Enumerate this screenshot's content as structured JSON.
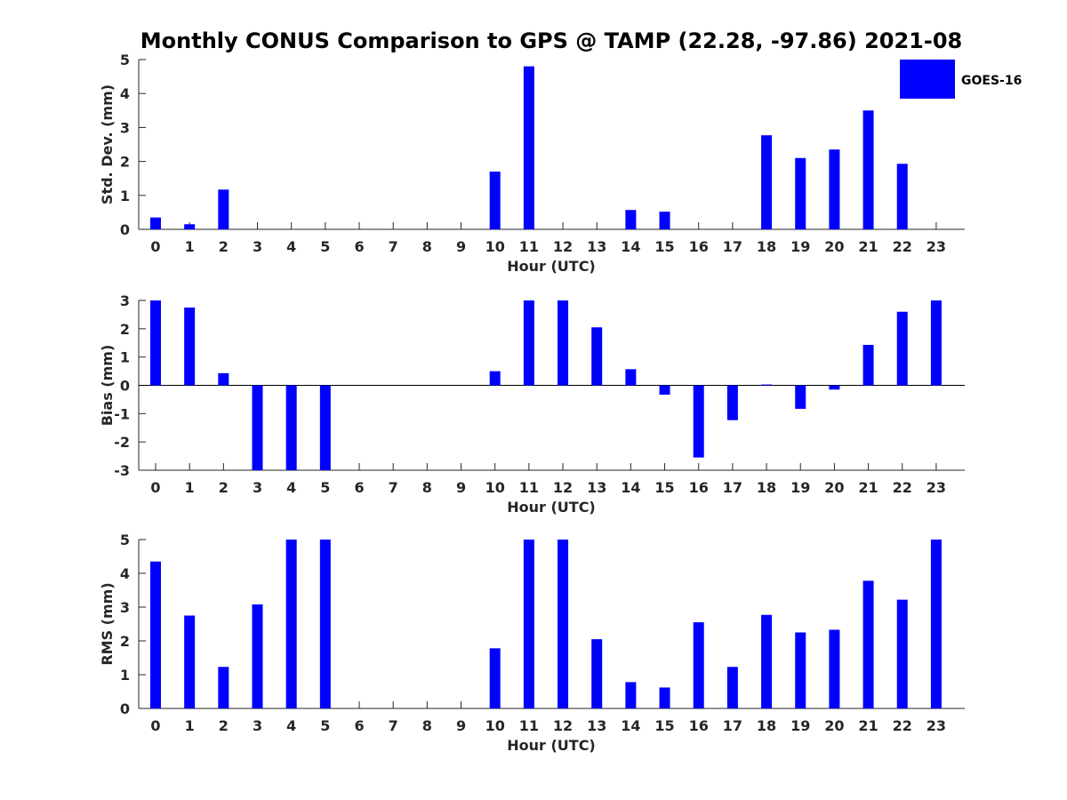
{
  "title": "Monthly CONUS Comparison to GPS @ TAMP (22.28, -97.86) 2021-08",
  "legend": {
    "label": "GOES-16",
    "color": "#0000ff"
  },
  "chart_data": [
    {
      "type": "bar",
      "xlabel": "Hour (UTC)",
      "ylabel": "Std. Dev. (mm)",
      "ylim": [
        0,
        5
      ],
      "yticks": [
        0,
        1,
        2,
        3,
        4,
        5
      ],
      "categories": [
        "0",
        "1",
        "2",
        "3",
        "4",
        "5",
        "6",
        "7",
        "8",
        "9",
        "10",
        "11",
        "12",
        "13",
        "14",
        "15",
        "16",
        "17",
        "18",
        "19",
        "20",
        "21",
        "22",
        "23"
      ],
      "series": [
        {
          "name": "GOES-16",
          "values": [
            0.35,
            0.15,
            1.17,
            null,
            null,
            null,
            null,
            null,
            null,
            null,
            1.7,
            4.8,
            null,
            null,
            0.57,
            0.52,
            null,
            null,
            2.77,
            2.1,
            2.35,
            3.5,
            1.93,
            null
          ]
        }
      ],
      "grid": false,
      "legend_position": "top-right"
    },
    {
      "type": "bar",
      "xlabel": "Hour (UTC)",
      "ylabel": "Bias (mm)",
      "ylim": [
        -3,
        3
      ],
      "yticks": [
        -3,
        -2,
        -1,
        0,
        1,
        2,
        3
      ],
      "categories": [
        "0",
        "1",
        "2",
        "3",
        "4",
        "5",
        "6",
        "7",
        "8",
        "9",
        "10",
        "11",
        "12",
        "13",
        "14",
        "15",
        "16",
        "17",
        "18",
        "19",
        "20",
        "21",
        "22",
        "23"
      ],
      "series": [
        {
          "name": "GOES-16",
          "values": [
            3.0,
            2.75,
            0.43,
            -3.0,
            -3.0,
            -3.0,
            null,
            null,
            null,
            null,
            0.5,
            3.0,
            3.0,
            2.05,
            0.57,
            -0.33,
            -2.55,
            -1.23,
            0.03,
            -0.83,
            -0.15,
            1.43,
            2.6,
            3.0
          ]
        }
      ],
      "grid": false,
      "zero_line": true
    },
    {
      "type": "bar",
      "xlabel": "Hour (UTC)",
      "ylabel": "RMS (mm)",
      "ylim": [
        0,
        5
      ],
      "yticks": [
        0,
        1,
        2,
        3,
        4,
        5
      ],
      "categories": [
        "0",
        "1",
        "2",
        "3",
        "4",
        "5",
        "6",
        "7",
        "8",
        "9",
        "10",
        "11",
        "12",
        "13",
        "14",
        "15",
        "16",
        "17",
        "18",
        "19",
        "20",
        "21",
        "22",
        "23"
      ],
      "series": [
        {
          "name": "GOES-16",
          "values": [
            4.35,
            2.75,
            1.23,
            3.08,
            5.0,
            5.0,
            null,
            null,
            null,
            null,
            1.78,
            5.0,
            5.0,
            2.05,
            0.78,
            0.62,
            2.55,
            1.23,
            2.77,
            2.25,
            2.33,
            3.78,
            3.22,
            5.0
          ]
        }
      ],
      "grid": false
    }
  ]
}
